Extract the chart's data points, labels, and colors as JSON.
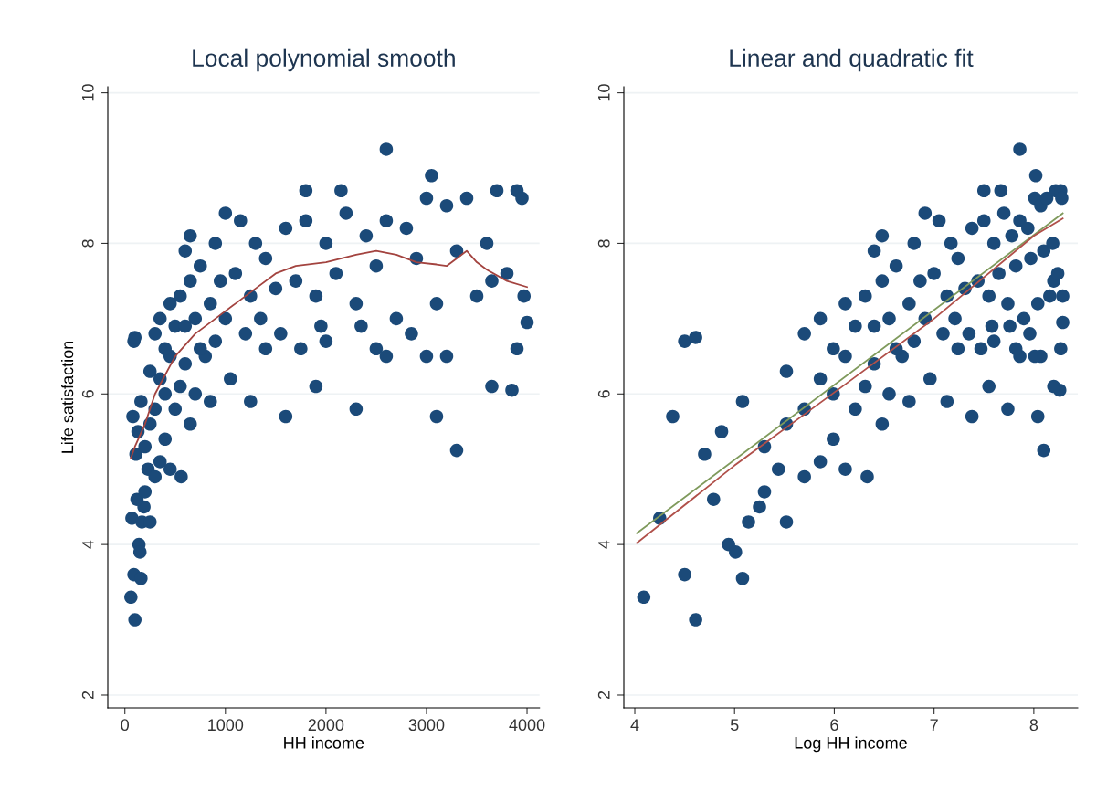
{
  "chart_data": [
    {
      "type": "scatter",
      "title": "Local polynomial smooth",
      "xlabel": "HH income",
      "ylabel": "Life satisfaction",
      "xlim": [
        -170,
        4124
      ],
      "ylim": [
        1.83,
        10.08
      ],
      "xticks": [
        0,
        1000,
        2000,
        3000,
        4000
      ],
      "yticks": [
        2,
        4,
        6,
        8,
        10
      ],
      "grid": "y",
      "series": [
        {
          "marker": "circle",
          "color": "#1b4a79",
          "x": [
            60,
            100,
            90,
            160,
            70,
            140,
            150,
            170,
            190,
            250,
            120,
            200,
            230,
            110,
            80,
            90,
            100,
            130,
            160,
            200,
            250,
            300,
            350,
            400,
            450,
            560,
            300,
            350,
            400,
            450,
            500,
            550,
            600,
            650,
            700,
            250,
            300,
            350,
            400,
            450,
            500,
            550,
            600,
            650,
            700,
            750,
            800,
            850,
            900,
            950,
            1000,
            1050,
            1100,
            1200,
            1250,
            1300,
            1350,
            1400,
            1500,
            1550,
            1600,
            1700,
            1750,
            1800,
            1900,
            1950,
            2000,
            2100,
            2200,
            2300,
            2350,
            2400,
            2500,
            2600,
            2600,
            2700,
            2800,
            2900,
            3000,
            3050,
            3100,
            3200,
            3300,
            3300,
            3400,
            3500,
            3600,
            3650,
            3700,
            3800,
            3900,
            3950,
            3970,
            4000,
            3850,
            3650,
            3900,
            3100,
            1600,
            1900,
            2300,
            2600,
            1250,
            850,
            600,
            1000,
            1800,
            900,
            650,
            3200,
            3000,
            2500,
            2850,
            2000,
            1400,
            750,
            1150,
            2150
          ],
          "values": [
            3.3,
            3.0,
            3.6,
            3.55,
            4.35,
            4.0,
            3.9,
            4.3,
            4.5,
            4.3,
            4.6,
            4.7,
            5.0,
            5.2,
            5.7,
            6.7,
            6.75,
            5.5,
            5.9,
            5.3,
            5.6,
            4.9,
            5.1,
            5.4,
            5.0,
            4.9,
            5.8,
            6.2,
            6.0,
            6.5,
            5.8,
            6.1,
            6.4,
            5.6,
            6.0,
            6.3,
            6.8,
            7.0,
            6.6,
            7.2,
            6.9,
            7.3,
            6.9,
            7.5,
            7.0,
            7.7,
            6.5,
            7.2,
            6.7,
            7.5,
            7.0,
            6.2,
            7.6,
            6.8,
            7.3,
            8.0,
            7.0,
            7.8,
            7.4,
            6.8,
            8.2,
            7.5,
            6.6,
            8.3,
            7.3,
            6.9,
            8.0,
            7.6,
            8.4,
            7.2,
            6.9,
            8.1,
            7.7,
            8.3,
            9.25,
            7.0,
            8.2,
            7.8,
            8.6,
            8.9,
            7.2,
            8.5,
            7.9,
            5.25,
            8.6,
            7.3,
            8.0,
            7.5,
            8.7,
            7.6,
            8.7,
            8.6,
            7.3,
            6.95,
            6.05,
            6.1,
            6.6,
            5.7,
            5.7,
            6.1,
            5.8,
            6.5,
            5.9,
            5.9,
            7.9,
            8.4,
            8.7,
            8.0,
            8.1,
            6.5,
            6.5,
            6.6,
            6.8,
            6.7,
            6.6,
            6.6,
            8.3,
            8.7
          ]
        },
        {
          "type": "line",
          "color": "#a3433f",
          "x": [
            60,
            100,
            200,
            300,
            500,
            700,
            900,
            1100,
            1300,
            1500,
            1700,
            2000,
            2300,
            2500,
            2700,
            2900,
            3100,
            3200,
            3300,
            3400,
            3500,
            3600,
            3800,
            4000
          ],
          "values": [
            5.15,
            5.3,
            5.6,
            6.0,
            6.5,
            6.8,
            7.0,
            7.2,
            7.4,
            7.6,
            7.7,
            7.75,
            7.85,
            7.9,
            7.85,
            7.75,
            7.72,
            7.7,
            7.8,
            7.9,
            7.75,
            7.65,
            7.5,
            7.42
          ]
        }
      ]
    },
    {
      "type": "scatter",
      "title": "Linear and quadratic fit",
      "xlabel": "Log HH income",
      "xlim": [
        3.89,
        8.44
      ],
      "ylim": [
        1.83,
        10.08
      ],
      "xticks": [
        4,
        5,
        6,
        7,
        8
      ],
      "yticks": [
        2,
        4,
        6,
        8,
        10
      ],
      "grid": "y",
      "series": [
        {
          "marker": "circle",
          "color": "#1b4a79",
          "x": [
            4.09,
            4.61,
            4.5,
            5.08,
            4.25,
            4.94,
            5.01,
            5.14,
            5.25,
            5.52,
            4.79,
            5.3,
            5.44,
            4.7,
            4.38,
            4.5,
            4.61,
            4.87,
            5.08,
            5.3,
            5.52,
            5.7,
            5.86,
            5.99,
            6.11,
            6.33,
            5.7,
            5.86,
            5.99,
            6.11,
            6.21,
            6.31,
            6.4,
            6.48,
            6.55,
            5.52,
            5.7,
            5.86,
            5.99,
            6.11,
            6.21,
            6.31,
            6.4,
            6.48,
            6.55,
            6.62,
            6.68,
            6.75,
            6.8,
            6.86,
            6.91,
            6.96,
            7.0,
            7.09,
            7.13,
            7.17,
            7.21,
            7.24,
            7.31,
            7.35,
            7.38,
            7.44,
            7.47,
            7.5,
            7.55,
            7.58,
            7.6,
            7.65,
            7.7,
            7.74,
            7.76,
            7.78,
            7.82,
            7.86,
            7.86,
            7.9,
            7.94,
            7.97,
            8.01,
            8.02,
            8.04,
            8.07,
            8.1,
            8.1,
            8.13,
            8.16,
            8.19,
            8.2,
            8.22,
            8.24,
            8.27,
            8.28,
            8.29,
            8.29,
            8.26,
            8.2,
            8.27,
            8.04,
            7.38,
            7.55,
            7.74,
            7.86,
            7.13,
            6.75,
            6.4,
            6.91,
            7.5,
            6.8,
            6.48,
            8.07,
            8.01,
            7.82,
            7.96,
            7.6,
            7.24,
            6.62,
            7.05,
            7.67
          ],
          "values": [
            3.3,
            3.0,
            3.6,
            3.55,
            4.35,
            4.0,
            3.9,
            4.3,
            4.5,
            4.3,
            4.6,
            4.7,
            5.0,
            5.2,
            5.7,
            6.7,
            6.75,
            5.5,
            5.9,
            5.3,
            5.6,
            4.9,
            5.1,
            5.4,
            5.0,
            4.9,
            5.8,
            6.2,
            6.0,
            6.5,
            5.8,
            6.1,
            6.4,
            5.6,
            6.0,
            6.3,
            6.8,
            7.0,
            6.6,
            7.2,
            6.9,
            7.3,
            6.9,
            7.5,
            7.0,
            7.7,
            6.5,
            7.2,
            6.7,
            7.5,
            7.0,
            6.2,
            7.6,
            6.8,
            7.3,
            8.0,
            7.0,
            7.8,
            7.4,
            6.8,
            8.2,
            7.5,
            6.6,
            8.3,
            7.3,
            6.9,
            8.0,
            7.6,
            8.4,
            7.2,
            6.9,
            8.1,
            7.7,
            8.3,
            9.25,
            7.0,
            8.2,
            7.8,
            8.6,
            8.9,
            7.2,
            8.5,
            7.9,
            5.25,
            8.6,
            7.3,
            8.0,
            7.5,
            8.7,
            7.6,
            8.7,
            8.6,
            7.3,
            6.95,
            6.05,
            6.1,
            6.6,
            5.7,
            5.7,
            6.1,
            5.8,
            6.5,
            5.9,
            5.9,
            7.9,
            8.4,
            8.7,
            8.0,
            8.1,
            6.5,
            6.5,
            6.6,
            6.8,
            6.7,
            6.6,
            6.6,
            8.3,
            8.7
          ]
        },
        {
          "type": "line",
          "color": "#7f9a5c",
          "x": [
            4.02,
            8.29
          ],
          "values": [
            4.15,
            8.4
          ]
        },
        {
          "type": "line",
          "color": "#b0504a",
          "x": [
            4.02,
            5,
            6,
            7,
            8,
            8.29
          ],
          "values": [
            4.02,
            5.05,
            6.02,
            7.0,
            8.1,
            8.33
          ]
        }
      ]
    }
  ]
}
